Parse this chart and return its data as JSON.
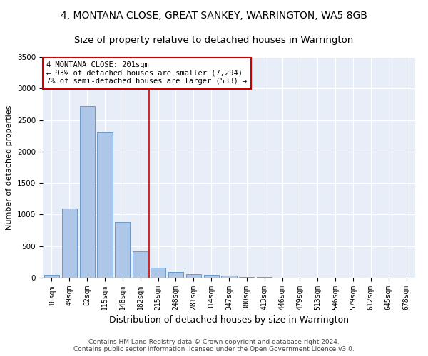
{
  "title": "4, MONTANA CLOSE, GREAT SANKEY, WARRINGTON, WA5 8GB",
  "subtitle": "Size of property relative to detached houses in Warrington",
  "xlabel": "Distribution of detached houses by size in Warrington",
  "ylabel": "Number of detached properties",
  "categories": [
    "16sqm",
    "49sqm",
    "82sqm",
    "115sqm",
    "148sqm",
    "182sqm",
    "215sqm",
    "248sqm",
    "281sqm",
    "314sqm",
    "347sqm",
    "380sqm",
    "413sqm",
    "446sqm",
    "479sqm",
    "513sqm",
    "546sqm",
    "579sqm",
    "612sqm",
    "645sqm",
    "678sqm"
  ],
  "values": [
    50,
    1090,
    2720,
    2300,
    880,
    420,
    160,
    90,
    60,
    50,
    30,
    15,
    10,
    5,
    3,
    2,
    1,
    1,
    0,
    0,
    0
  ],
  "bar_color": "#aec6e8",
  "bar_edge_color": "#5a8fc2",
  "vline_x": 5.5,
  "annotation_text": "4 MONTANA CLOSE: 201sqm\n← 93% of detached houses are smaller (7,294)\n7% of semi-detached houses are larger (533) →",
  "annotation_box_color": "#ffffff",
  "annotation_box_edge_color": "#cc0000",
  "vline_color": "#cc0000",
  "ylim": [
    0,
    3500
  ],
  "yticks": [
    0,
    500,
    1000,
    1500,
    2000,
    2500,
    3000,
    3500
  ],
  "bg_color": "#e8eef8",
  "footer": "Contains HM Land Registry data © Crown copyright and database right 2024.\nContains public sector information licensed under the Open Government Licence v3.0.",
  "title_fontsize": 10,
  "subtitle_fontsize": 9.5,
  "xlabel_fontsize": 9,
  "ylabel_fontsize": 8,
  "footer_fontsize": 6.5,
  "tick_fontsize": 7,
  "ytick_fontsize": 7.5,
  "annot_fontsize": 7.5
}
